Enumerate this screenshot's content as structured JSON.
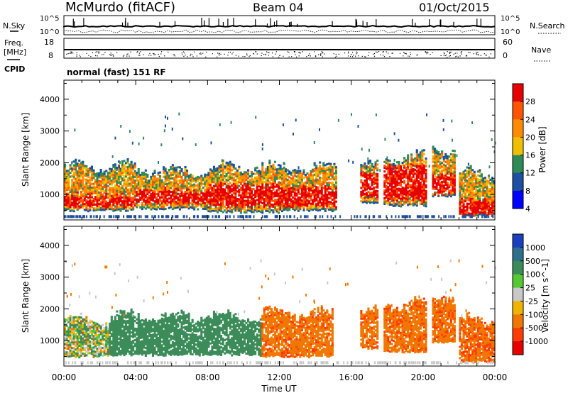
{
  "header": {
    "station": "McMurdo (fitACF)",
    "beam": "Beam 04",
    "date": "01/Oct/2015"
  },
  "top_panels": {
    "nsky_label": "N.Sky",
    "nsky_ticks": [
      "10^5",
      "10^0"
    ],
    "nsearch_label": "N.Search",
    "nsearch_ticks": [
      "10^5",
      "10^0"
    ],
    "freq_label": "Freq.",
    "freq_unit": "[MHz]",
    "freq_ticks": [
      "18",
      "8"
    ],
    "nave_label": "Nave",
    "nave_ticks": [
      "60",
      "0"
    ],
    "cpid_label": "CPID",
    "cpid_value": "normal (fast) 151 RF"
  },
  "chart_data": [
    {
      "type": "heatmap",
      "panel": "power",
      "ylabel": "Slant Range [km]",
      "ylim": [
        200,
        4600
      ],
      "yticks": [
        1000,
        2000,
        3000,
        4000
      ],
      "xlim_hours": [
        0,
        24
      ],
      "colorbar_label": "Power [dB]",
      "colorbar_ticks": [
        "28",
        "24",
        "20",
        "16",
        "12",
        "8",
        "4"
      ],
      "colorbar_colors": [
        "#e60000",
        "#ff5500",
        "#ff8c00",
        "#f0c000",
        "#2e8b57",
        "#1e4fa0",
        "#0000ff"
      ],
      "echo_bands": [
        {
          "t0": 0.0,
          "t1": 4.0,
          "r_low": 450,
          "r_high": 1900,
          "core_low": 600,
          "core_high": 950
        },
        {
          "t0": 4.0,
          "t1": 8.0,
          "r_low": 500,
          "r_high": 1800,
          "core_low": 700,
          "core_high": 1100
        },
        {
          "t0": 8.0,
          "t1": 12.0,
          "r_low": 400,
          "r_high": 1900,
          "core_low": 600,
          "core_high": 1300
        },
        {
          "t0": 12.0,
          "t1": 15.2,
          "r_low": 450,
          "r_high": 1900,
          "core_low": 600,
          "core_high": 1200
        },
        {
          "t0": 16.5,
          "t1": 17.5,
          "r_low": 700,
          "r_high": 1900,
          "core_low": 900,
          "core_high": 1600
        },
        {
          "t0": 17.8,
          "t1": 20.2,
          "r_low": 600,
          "r_high": 2200,
          "core_low": 800,
          "core_high": 1900
        },
        {
          "t0": 20.5,
          "t1": 21.8,
          "r_low": 900,
          "r_high": 2500,
          "core_low": 1000,
          "core_high": 1600
        },
        {
          "t0": 22.0,
          "t1": 24.0,
          "r_low": 300,
          "r_high": 1700,
          "core_low": 350,
          "core_high": 800
        }
      ]
    },
    {
      "type": "heatmap",
      "panel": "velocity",
      "ylabel": "Slant Range [km]",
      "ylim": [
        200,
        4600
      ],
      "yticks": [
        1000,
        2000,
        3000,
        4000
      ],
      "xlim_hours": [
        0,
        24
      ],
      "xticks": [
        "00:00",
        "04:00",
        "08:00",
        "12:00",
        "16:00",
        "20:00",
        "00:00"
      ],
      "xlabel": "Time UT",
      "colorbar_label": "Velocity [m s^-1]",
      "colorbar_ticks": [
        "1000",
        "500",
        "100",
        "25",
        "-25",
        "-100",
        "-500",
        "-1000"
      ],
      "colorbar_colors": [
        "#1a3fbf",
        "#2e6f8e",
        "#3c8c5a",
        "#55c832",
        "#c8c8c8",
        "#f0b400",
        "#f07800",
        "#ff3c00",
        "#e60000"
      ],
      "echo_bands": [
        {
          "t0": 0.0,
          "t1": 2.5,
          "r_low": 450,
          "r_high": 1700,
          "velocity": 25
        },
        {
          "t0": 2.5,
          "t1": 11.0,
          "r_low": 500,
          "r_high": 1800,
          "velocity": 300
        },
        {
          "t0": 11.0,
          "t1": 15.0,
          "r_low": 450,
          "r_high": 1900,
          "velocity": -300
        },
        {
          "t0": 16.5,
          "t1": 17.5,
          "r_low": 700,
          "r_high": 1900,
          "velocity": -300
        },
        {
          "t0": 17.8,
          "t1": 20.2,
          "r_low": 600,
          "r_high": 2200,
          "velocity": -300
        },
        {
          "t0": 20.5,
          "t1": 21.8,
          "r_low": 900,
          "r_high": 2500,
          "velocity": -300
        },
        {
          "t0": 22.0,
          "t1": 24.0,
          "r_low": 300,
          "r_high": 1700,
          "velocity": -400
        }
      ]
    }
  ]
}
